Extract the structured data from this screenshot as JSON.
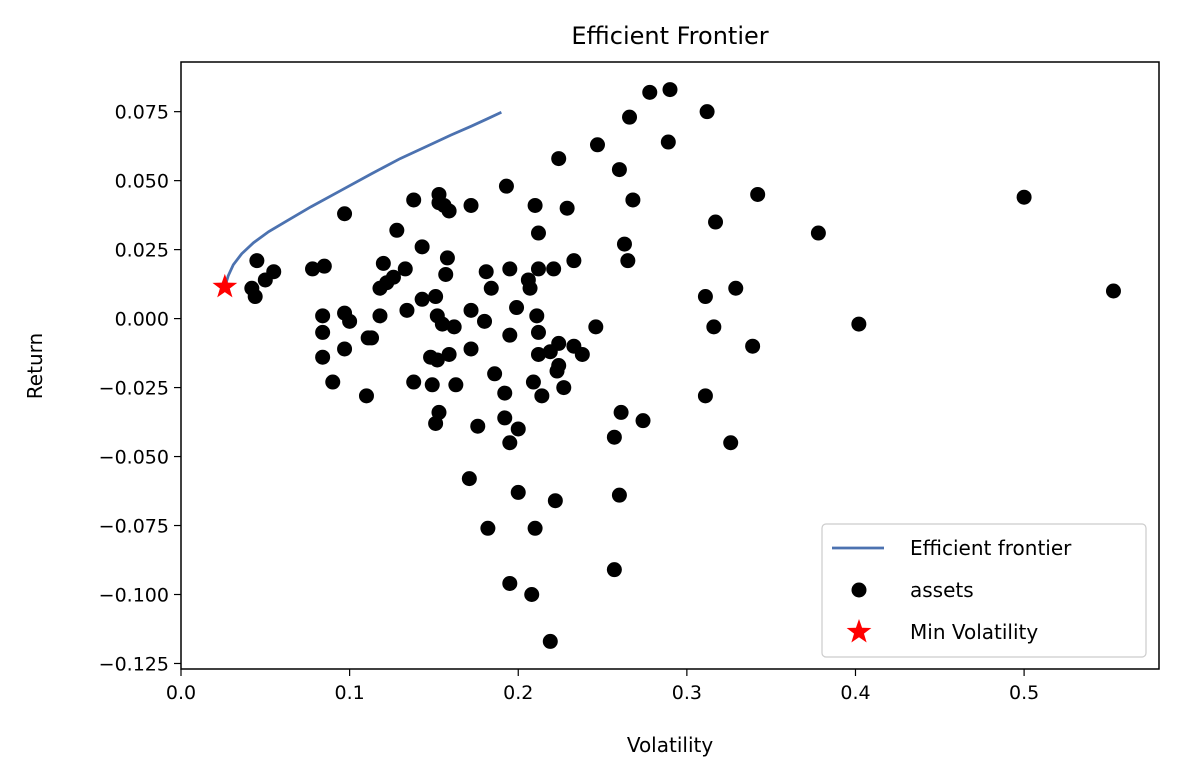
{
  "chart_data": {
    "type": "scatter",
    "title": "Efficient Frontier",
    "xlabel": "Volatility",
    "ylabel": "Return",
    "xlim": [
      0.0,
      0.58
    ],
    "ylim": [
      -0.127,
      0.093
    ],
    "xticks": [
      {
        "value": 0.0,
        "label": "0.0"
      },
      {
        "value": 0.1,
        "label": "0.1"
      },
      {
        "value": 0.2,
        "label": "0.2"
      },
      {
        "value": 0.3,
        "label": "0.3"
      },
      {
        "value": 0.4,
        "label": "0.4"
      },
      {
        "value": 0.5,
        "label": "0.5"
      }
    ],
    "yticks": [
      {
        "value": 0.075,
        "label": "0.075"
      },
      {
        "value": 0.05,
        "label": "0.050"
      },
      {
        "value": 0.025,
        "label": "0.025"
      },
      {
        "value": 0.0,
        "label": "0.000"
      },
      {
        "value": -0.025,
        "label": "−0.025"
      },
      {
        "value": -0.05,
        "label": "−0.050"
      },
      {
        "value": -0.075,
        "label": "−0.075"
      },
      {
        "value": -0.1,
        "label": "−0.100"
      },
      {
        "value": -0.125,
        "label": "−0.125"
      }
    ],
    "grid": false,
    "legend_position": "bottom-right",
    "legend": [
      {
        "label": "Efficient frontier",
        "marker": "line",
        "color": "#4c72b0"
      },
      {
        "label": "assets",
        "marker": "circle",
        "color": "#000000"
      },
      {
        "label": "Min Volatility",
        "marker": "star",
        "color": "#ff0000"
      }
    ],
    "series": [
      {
        "name": "Efficient frontier",
        "type": "line",
        "color": "#4c72b0",
        "x": [
          0.026,
          0.028,
          0.031,
          0.036,
          0.043,
          0.052,
          0.063,
          0.077,
          0.095,
          0.113,
          0.13,
          0.146,
          0.16,
          0.172,
          0.182,
          0.19
        ],
        "y": [
          0.0115,
          0.0155,
          0.0195,
          0.0235,
          0.0275,
          0.0315,
          0.0355,
          0.0405,
          0.0465,
          0.0525,
          0.058,
          0.0625,
          0.0665,
          0.0697,
          0.0725,
          0.0748
        ]
      },
      {
        "name": "assets",
        "type": "scatter",
        "color": "#000000",
        "points": [
          [
            0.29,
            0.083
          ],
          [
            0.278,
            0.082
          ],
          [
            0.266,
            0.073
          ],
          [
            0.312,
            0.075
          ],
          [
            0.289,
            0.064
          ],
          [
            0.247,
            0.063
          ],
          [
            0.224,
            0.058
          ],
          [
            0.26,
            0.054
          ],
          [
            0.193,
            0.048
          ],
          [
            0.342,
            0.045
          ],
          [
            0.5,
            0.044
          ],
          [
            0.138,
            0.043
          ],
          [
            0.153,
            0.045
          ],
          [
            0.153,
            0.042
          ],
          [
            0.156,
            0.041
          ],
          [
            0.159,
            0.039
          ],
          [
            0.172,
            0.041
          ],
          [
            0.21,
            0.041
          ],
          [
            0.229,
            0.04
          ],
          [
            0.268,
            0.043
          ],
          [
            0.097,
            0.038
          ],
          [
            0.317,
            0.035
          ],
          [
            0.378,
            0.031
          ],
          [
            0.128,
            0.032
          ],
          [
            0.212,
            0.031
          ],
          [
            0.143,
            0.026
          ],
          [
            0.263,
            0.027
          ],
          [
            0.158,
            0.022
          ],
          [
            0.045,
            0.021
          ],
          [
            0.085,
            0.019
          ],
          [
            0.078,
            0.018
          ],
          [
            0.055,
            0.017
          ],
          [
            0.05,
            0.014
          ],
          [
            0.12,
            0.02
          ],
          [
            0.133,
            0.018
          ],
          [
            0.126,
            0.015
          ],
          [
            0.122,
            0.013
          ],
          [
            0.118,
            0.011
          ],
          [
            0.157,
            0.016
          ],
          [
            0.181,
            0.017
          ],
          [
            0.195,
            0.018
          ],
          [
            0.212,
            0.018
          ],
          [
            0.221,
            0.018
          ],
          [
            0.233,
            0.021
          ],
          [
            0.265,
            0.021
          ],
          [
            0.206,
            0.014
          ],
          [
            0.207,
            0.011
          ],
          [
            0.184,
            0.011
          ],
          [
            0.042,
            0.011
          ],
          [
            0.044,
            0.008
          ],
          [
            0.143,
            0.007
          ],
          [
            0.151,
            0.008
          ],
          [
            0.311,
            0.008
          ],
          [
            0.329,
            0.011
          ],
          [
            0.134,
            0.003
          ],
          [
            0.152,
            0.001
          ],
          [
            0.172,
            0.003
          ],
          [
            0.199,
            0.004
          ],
          [
            0.084,
            0.001
          ],
          [
            0.097,
            0.002
          ],
          [
            0.118,
            0.001
          ],
          [
            0.155,
            -0.002
          ],
          [
            0.162,
            -0.003
          ],
          [
            0.18,
            -0.001
          ],
          [
            0.211,
            0.001
          ],
          [
            0.1,
            -0.001
          ],
          [
            0.084,
            -0.005
          ],
          [
            0.212,
            -0.005
          ],
          [
            0.246,
            -0.003
          ],
          [
            0.316,
            -0.003
          ],
          [
            0.402,
            -0.002
          ],
          [
            0.553,
            0.01
          ],
          [
            0.195,
            -0.006
          ],
          [
            0.113,
            -0.007
          ],
          [
            0.111,
            -0.007
          ],
          [
            0.097,
            -0.011
          ],
          [
            0.084,
            -0.014
          ],
          [
            0.172,
            -0.011
          ],
          [
            0.148,
            -0.014
          ],
          [
            0.152,
            -0.015
          ],
          [
            0.159,
            -0.013
          ],
          [
            0.212,
            -0.013
          ],
          [
            0.219,
            -0.012
          ],
          [
            0.224,
            -0.009
          ],
          [
            0.233,
            -0.01
          ],
          [
            0.238,
            -0.013
          ],
          [
            0.339,
            -0.01
          ],
          [
            0.224,
            -0.017
          ],
          [
            0.223,
            -0.019
          ],
          [
            0.186,
            -0.02
          ],
          [
            0.138,
            -0.023
          ],
          [
            0.149,
            -0.024
          ],
          [
            0.163,
            -0.024
          ],
          [
            0.09,
            -0.023
          ],
          [
            0.11,
            -0.028
          ],
          [
            0.192,
            -0.027
          ],
          [
            0.209,
            -0.023
          ],
          [
            0.214,
            -0.028
          ],
          [
            0.227,
            -0.025
          ],
          [
            0.153,
            -0.034
          ],
          [
            0.151,
            -0.038
          ],
          [
            0.176,
            -0.039
          ],
          [
            0.192,
            -0.036
          ],
          [
            0.2,
            -0.04
          ],
          [
            0.195,
            -0.045
          ],
          [
            0.261,
            -0.034
          ],
          [
            0.274,
            -0.037
          ],
          [
            0.257,
            -0.043
          ],
          [
            0.311,
            -0.028
          ],
          [
            0.326,
            -0.045
          ],
          [
            0.171,
            -0.058
          ],
          [
            0.2,
            -0.063
          ],
          [
            0.26,
            -0.064
          ],
          [
            0.222,
            -0.066
          ],
          [
            0.182,
            -0.076
          ],
          [
            0.21,
            -0.076
          ],
          [
            0.257,
            -0.091
          ],
          [
            0.195,
            -0.096
          ],
          [
            0.208,
            -0.1
          ],
          [
            0.219,
            -0.117
          ]
        ]
      },
      {
        "name": "Min Volatility",
        "type": "scatter",
        "marker": "star",
        "color": "#ff0000",
        "points": [
          [
            0.026,
            0.0115
          ]
        ]
      }
    ]
  }
}
